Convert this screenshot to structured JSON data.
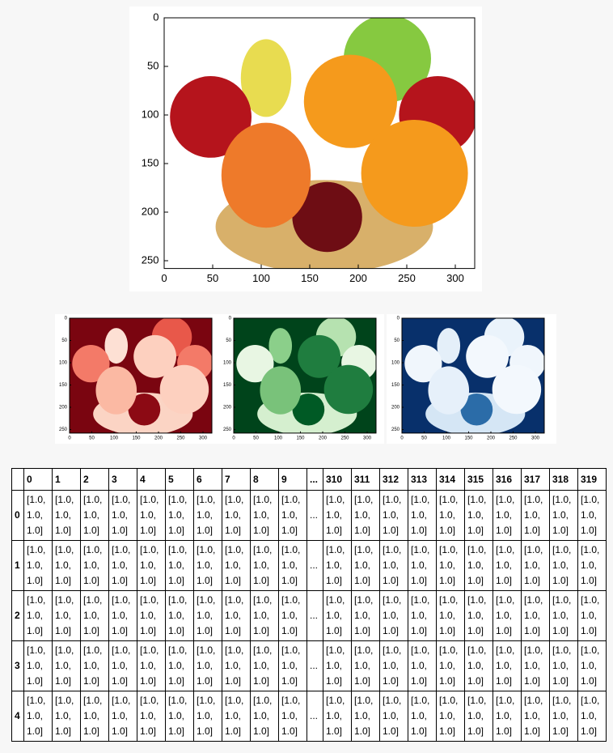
{
  "main_plot": {
    "xlim": [
      0,
      320
    ],
    "ylim": [
      0,
      258
    ],
    "xticks": [
      0,
      50,
      100,
      150,
      200,
      250,
      300
    ],
    "yticks": [
      0,
      50,
      100,
      150,
      200,
      250
    ]
  },
  "channel_plots": [
    {
      "xlim": [
        0,
        320
      ],
      "ylim": [
        0,
        258
      ],
      "xticks": [
        0,
        50,
        100,
        150,
        200,
        250,
        300
      ],
      "yticks": [
        0,
        50,
        100,
        150,
        200,
        250
      ]
    },
    {
      "xlim": [
        0,
        320
      ],
      "ylim": [
        0,
        258
      ],
      "xticks": [
        0,
        50,
        100,
        150,
        200,
        250,
        300
      ],
      "yticks": [
        0,
        50,
        100,
        150,
        200,
        250
      ]
    },
    {
      "xlim": [
        0,
        320
      ],
      "ylim": [
        0,
        258
      ],
      "xticks": [
        0,
        50,
        100,
        150,
        200,
        250,
        300
      ],
      "yticks": [
        0,
        50,
        100,
        150,
        200,
        250
      ]
    }
  ],
  "table": {
    "columns": [
      "0",
      "1",
      "2",
      "3",
      "4",
      "5",
      "6",
      "7",
      "8",
      "9",
      "...",
      "310",
      "311",
      "312",
      "313",
      "314",
      "315",
      "316",
      "317",
      "318",
      "319"
    ],
    "rows": [
      {
        "index": "0",
        "cells": [
          "[1.0, 1.0, 1.0]",
          "[1.0, 1.0, 1.0]",
          "[1.0, 1.0, 1.0]",
          "[1.0, 1.0, 1.0]",
          "[1.0, 1.0, 1.0]",
          "[1.0, 1.0, 1.0]",
          "[1.0, 1.0, 1.0]",
          "[1.0, 1.0, 1.0]",
          "[1.0, 1.0, 1.0]",
          "[1.0, 1.0, 1.0]",
          "...",
          "[1.0, 1.0, 1.0]",
          "[1.0, 1.0, 1.0]",
          "[1.0, 1.0, 1.0]",
          "[1.0, 1.0, 1.0]",
          "[1.0, 1.0, 1.0]",
          "[1.0, 1.0, 1.0]",
          "[1.0, 1.0, 1.0]",
          "[1.0, 1.0, 1.0]",
          "[1.0, 1.0, 1.0]",
          "[1.0, 1.0, 1.0]"
        ]
      },
      {
        "index": "1",
        "cells": [
          "[1.0, 1.0, 1.0]",
          "[1.0, 1.0, 1.0]",
          "[1.0, 1.0, 1.0]",
          "[1.0, 1.0, 1.0]",
          "[1.0, 1.0, 1.0]",
          "[1.0, 1.0, 1.0]",
          "[1.0, 1.0, 1.0]",
          "[1.0, 1.0, 1.0]",
          "[1.0, 1.0, 1.0]",
          "[1.0, 1.0, 1.0]",
          "...",
          "[1.0, 1.0, 1.0]",
          "[1.0, 1.0, 1.0]",
          "[1.0, 1.0, 1.0]",
          "[1.0, 1.0, 1.0]",
          "[1.0, 1.0, 1.0]",
          "[1.0, 1.0, 1.0]",
          "[1.0, 1.0, 1.0]",
          "[1.0, 1.0, 1.0]",
          "[1.0, 1.0, 1.0]",
          "[1.0, 1.0, 1.0]"
        ]
      },
      {
        "index": "2",
        "cells": [
          "[1.0, 1.0, 1.0]",
          "[1.0, 1.0, 1.0]",
          "[1.0, 1.0, 1.0]",
          "[1.0, 1.0, 1.0]",
          "[1.0, 1.0, 1.0]",
          "[1.0, 1.0, 1.0]",
          "[1.0, 1.0, 1.0]",
          "[1.0, 1.0, 1.0]",
          "[1.0, 1.0, 1.0]",
          "[1.0, 1.0, 1.0]",
          "...",
          "[1.0, 1.0, 1.0]",
          "[1.0, 1.0, 1.0]",
          "[1.0, 1.0, 1.0]",
          "[1.0, 1.0, 1.0]",
          "[1.0, 1.0, 1.0]",
          "[1.0, 1.0, 1.0]",
          "[1.0, 1.0, 1.0]",
          "[1.0, 1.0, 1.0]",
          "[1.0, 1.0, 1.0]",
          "[1.0, 1.0, 1.0]"
        ]
      },
      {
        "index": "3",
        "cells": [
          "[1.0, 1.0, 1.0]",
          "[1.0, 1.0, 1.0]",
          "[1.0, 1.0, 1.0]",
          "[1.0, 1.0, 1.0]",
          "[1.0, 1.0, 1.0]",
          "[1.0, 1.0, 1.0]",
          "[1.0, 1.0, 1.0]",
          "[1.0, 1.0, 1.0]",
          "[1.0, 1.0, 1.0]",
          "[1.0, 1.0, 1.0]",
          "...",
          "[1.0, 1.0, 1.0]",
          "[1.0, 1.0, 1.0]",
          "[1.0, 1.0, 1.0]",
          "[1.0, 1.0, 1.0]",
          "[1.0, 1.0, 1.0]",
          "[1.0, 1.0, 1.0]",
          "[1.0, 1.0, 1.0]",
          "[1.0, 1.0, 1.0]",
          "[1.0, 1.0, 1.0]",
          "[1.0, 1.0, 1.0]"
        ]
      },
      {
        "index": "4",
        "cells": [
          "[1.0, 1.0, 1.0]",
          "[1.0, 1.0, 1.0]",
          "[1.0, 1.0, 1.0]",
          "[1.0, 1.0, 1.0]",
          "[1.0, 1.0, 1.0]",
          "[1.0, 1.0, 1.0]",
          "[1.0, 1.0, 1.0]",
          "[1.0, 1.0, 1.0]",
          "[1.0, 1.0, 1.0]",
          "[1.0, 1.0, 1.0]",
          "...",
          "[1.0, 1.0, 1.0]",
          "[1.0, 1.0, 1.0]",
          "[1.0, 1.0, 1.0]",
          "[1.0, 1.0, 1.0]",
          "[1.0, 1.0, 1.0]",
          "[1.0, 1.0, 1.0]",
          "[1.0, 1.0, 1.0]",
          "[1.0, 1.0, 1.0]",
          "[1.0, 1.0, 1.0]",
          "[1.0, 1.0, 1.0]"
        ]
      }
    ]
  }
}
